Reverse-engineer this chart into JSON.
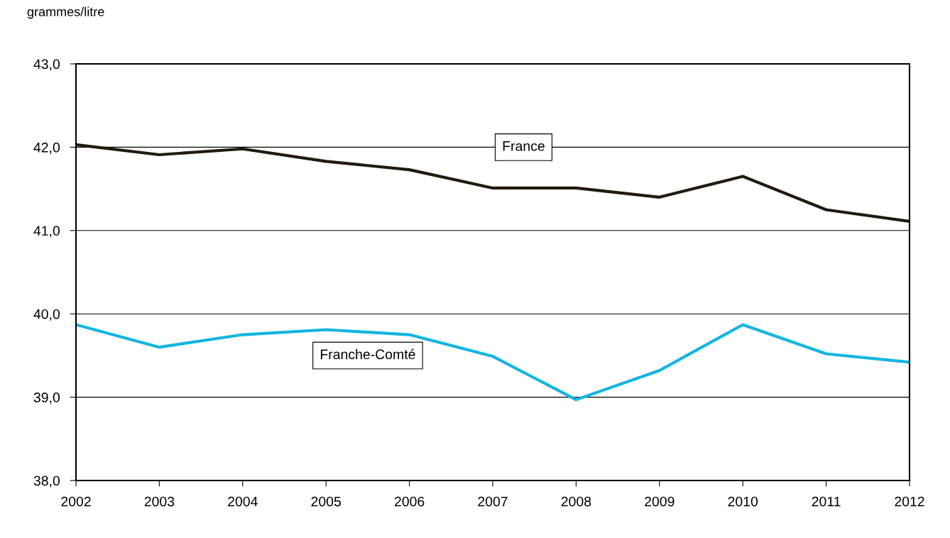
{
  "chart_data": {
    "type": "line",
    "ylabel": "grammes/litre",
    "x": [
      2002,
      2003,
      2004,
      2005,
      2006,
      2007,
      2008,
      2009,
      2010,
      2011,
      2012
    ],
    "series": [
      {
        "name": "France",
        "color": "#231a0e",
        "values": [
          42.03,
          41.91,
          41.98,
          41.83,
          41.73,
          41.51,
          41.51,
          41.4,
          41.65,
          41.25,
          41.11
        ]
      },
      {
        "name": "Franche-Comté",
        "color": "#12b5e0",
        "values": [
          39.87,
          39.6,
          39.75,
          39.81,
          39.75,
          39.49,
          38.97,
          39.32,
          39.87,
          39.52,
          39.42
        ]
      }
    ],
    "xlim": [
      2002,
      2012
    ],
    "xticks": [
      2002,
      2003,
      2004,
      2005,
      2006,
      2007,
      2008,
      2009,
      2010,
      2011,
      2012
    ],
    "ylim": [
      38,
      43
    ],
    "yticks": [
      {
        "value": 38,
        "label": "38,0"
      },
      {
        "value": 39,
        "label": "39,0"
      },
      {
        "value": 40,
        "label": "40,0"
      },
      {
        "value": 41,
        "label": "41,0"
      },
      {
        "value": 42,
        "label": "42,0"
      },
      {
        "value": 43,
        "label": "43,0"
      }
    ],
    "grid": "y",
    "legend": false,
    "marker": "none",
    "line_style": "solid"
  }
}
